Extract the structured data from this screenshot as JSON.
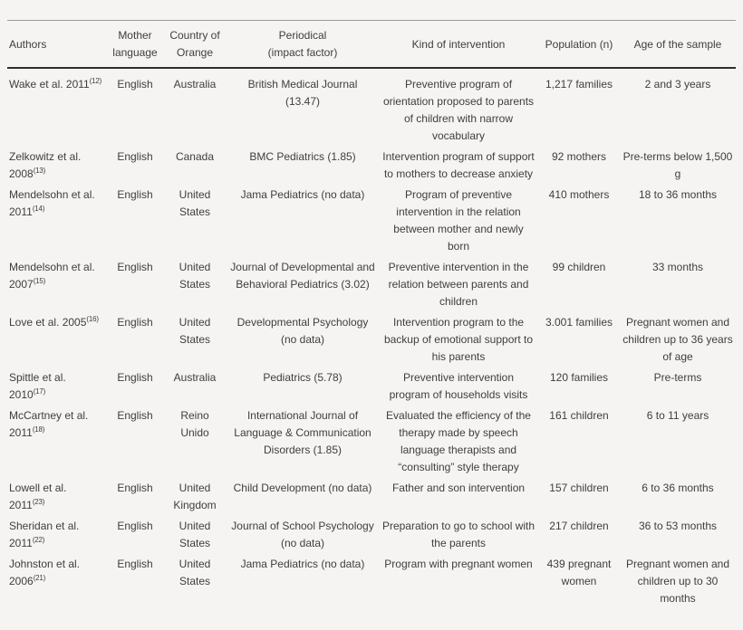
{
  "page": {
    "background_color": "#f5f4f2",
    "text_color": "#3e3e3e",
    "top_rule_color": "#9a9a9a",
    "header_rule_color": "#2e2e2e"
  },
  "table": {
    "headers": [
      {
        "id": "authors",
        "label": "Authors"
      },
      {
        "id": "language",
        "label": "Mother\nlanguage"
      },
      {
        "id": "country",
        "label": "Country of\nOrange"
      },
      {
        "id": "periodical",
        "label": "Periodical\n(impact factor)"
      },
      {
        "id": "intervention",
        "label": "Kind of intervention"
      },
      {
        "id": "population",
        "label": "Population (n)"
      },
      {
        "id": "age",
        "label": "Age of the sample"
      }
    ],
    "rows": [
      {
        "author": "Wake et al. 2011",
        "ref": "(12)",
        "language": "English",
        "country": "Australia",
        "periodical": "British Medical Journal (13.47)",
        "intervention": "Preventive program of orientation proposed to parents of children with narrow vocabulary",
        "population": "1,217 families",
        "age": "2 and 3 years"
      },
      {
        "author": "Zelkowitz et al. 2008",
        "ref": "(13)",
        "language": "English",
        "country": "Canada",
        "periodical": "BMC Pediatrics (1.85)",
        "intervention": "Intervention program of support to mothers to decrease anxiety",
        "population": "92 mothers",
        "age": "Pre-terms below 1,500 g"
      },
      {
        "author": "Mendelsohn et al. 2011",
        "ref": "(14)",
        "language": "English",
        "country": "United States",
        "periodical": "Jama Pediatrics (no data)",
        "intervention": "Program of preventive intervention in the relation between mother and newly born",
        "population": "410 mothers",
        "age": "18 to 36 months"
      },
      {
        "author": "Mendelsohn et al. 2007",
        "ref": "(15)",
        "language": "English",
        "country": "United States",
        "periodical": "Journal of Developmental and Behavioral Pediatrics (3.02)",
        "intervention": "Preventive intervention in the relation between parents and children",
        "population": "99 children",
        "age": "33 months"
      },
      {
        "author": "Love et al. 2005",
        "ref": "(16)",
        "language": "English",
        "country": "United States",
        "periodical": "Developmental Psychology (no data)",
        "intervention": "Intervention program to the backup of emotional support to his parents",
        "population": "3.001 families",
        "age": "Pregnant women and children up to 36 years of age"
      },
      {
        "author": "Spittle et al. 2010",
        "ref": "(17)",
        "language": "English",
        "country": "Australia",
        "periodical": "Pediatrics (5.78)",
        "intervention": "Preventive intervention program of households visits",
        "population": "120 families",
        "age": "Pre-terms"
      },
      {
        "author": "McCartney et al. 2011",
        "ref": "(18)",
        "language": "English",
        "country": "Reino Unido",
        "periodical": "International Journal of Language & Communication Disorders (1.85)",
        "intervention": "Evaluated the efficiency of the therapy made by speech language therapists and “consulting” style therapy",
        "population": "161 children",
        "age": "6 to 11 years"
      },
      {
        "author": "Lowell et al. 2011",
        "ref": "(23)",
        "language": "English",
        "country": "United Kingdom",
        "periodical": "Child Development (no data)",
        "intervention": "Father and son intervention",
        "population": "157 children",
        "age": "6 to 36 months"
      },
      {
        "author": "Sheridan et al. 2011",
        "ref": "(22)",
        "language": "English",
        "country": "United States",
        "periodical": "Journal of School Psychology (no data)",
        "intervention": "Preparation to go to school with the parents",
        "population": "217 children",
        "age": "36 to 53 months"
      },
      {
        "author": "Johnston et al. 2006",
        "ref": "(21)",
        "language": "English",
        "country": "United States",
        "periodical": "Jama Pediatrics (no data)",
        "intervention": "Program with pregnant women",
        "population": "439 pregnant women",
        "age": "Pregnant women and children up to 30 months"
      }
    ]
  }
}
